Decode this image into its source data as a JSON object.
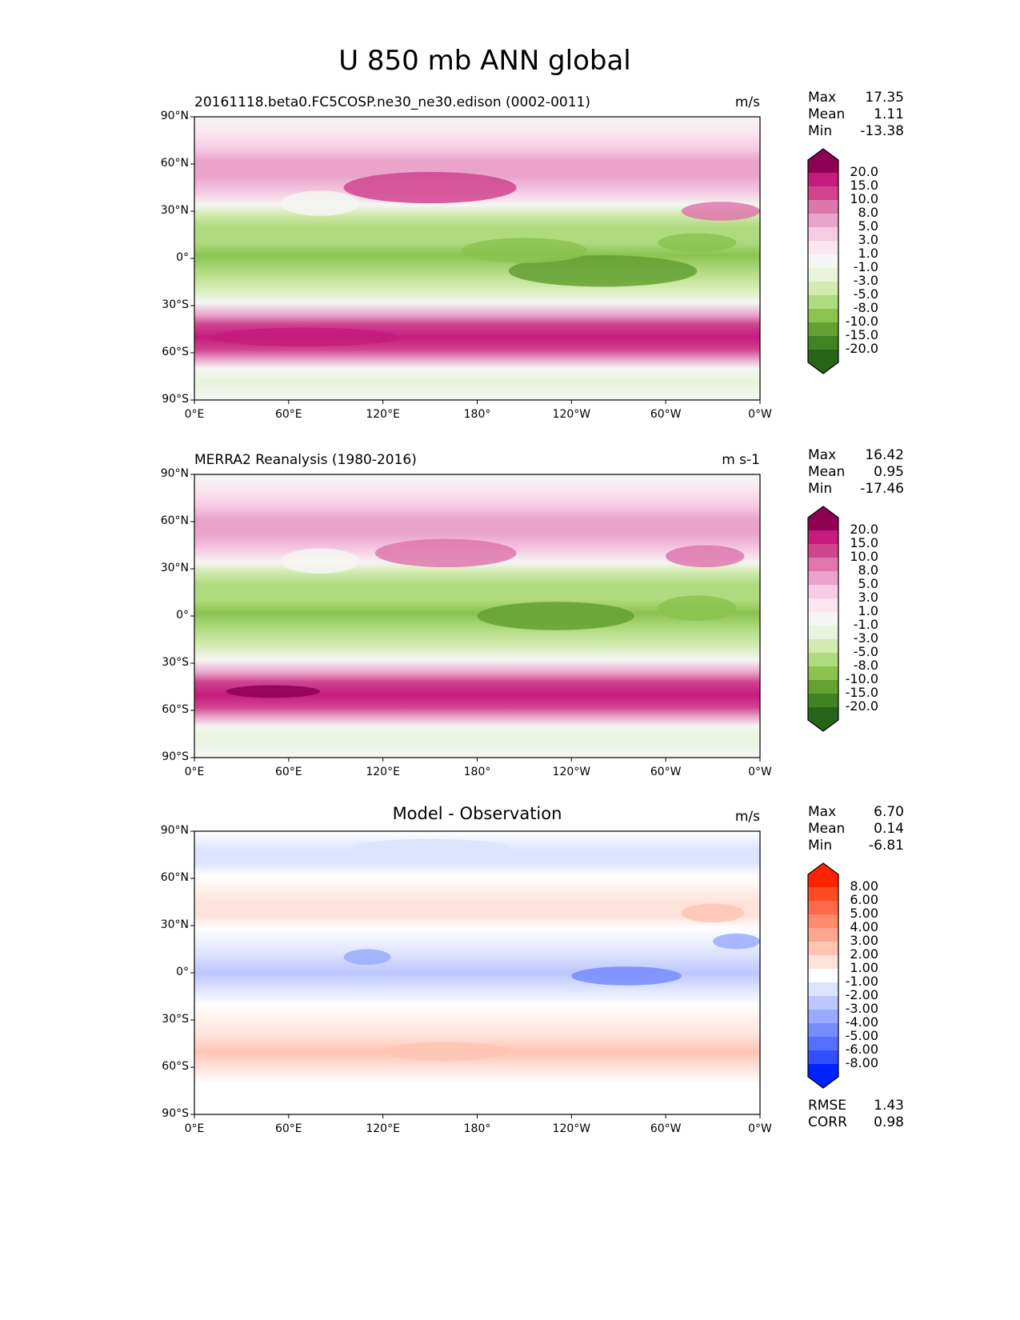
{
  "figure_title": "U 850 mb ANN global",
  "chart_data": [
    {
      "type": "heatmap",
      "title": "20161118.beta0.FC5COSP.ne30_ne30.edison (0002-0011)",
      "units": "m/s",
      "stats": {
        "max": "17.35",
        "mean": "1.11",
        "min": "-13.38"
      },
      "levels": [
        "20.0",
        "15.0",
        "10.0",
        "8.0",
        "5.0",
        "3.0",
        "1.0",
        "-1.0",
        "-3.0",
        "-5.0",
        "-8.0",
        "-10.0",
        "-15.0",
        "-20.0"
      ],
      "colors": [
        "#8e0152",
        "#c51b7d",
        "#d0448f",
        "#de77ae",
        "#eaa4cc",
        "#f6cbe3",
        "#fbe6f0",
        "#f5f6f3",
        "#e8f4dc",
        "#d2ebb0",
        "#b0da7e",
        "#8bc34f",
        "#64a032",
        "#3f8322",
        "#276419"
      ]
    },
    {
      "type": "heatmap",
      "title": "MERRA2 Reanalysis (1980-2016)",
      "units": "m s-1",
      "stats": {
        "max": "16.42",
        "mean": "0.95",
        "min": "-17.46"
      },
      "levels": [
        "20.0",
        "15.0",
        "10.0",
        "8.0",
        "5.0",
        "3.0",
        "1.0",
        "-1.0",
        "-3.0",
        "-5.0",
        "-8.0",
        "-10.0",
        "-15.0",
        "-20.0"
      ],
      "colors": [
        "#8e0152",
        "#c51b7d",
        "#d0448f",
        "#de77ae",
        "#eaa4cc",
        "#f6cbe3",
        "#fbe6f0",
        "#f5f6f3",
        "#e8f4dc",
        "#d2ebb0",
        "#b0da7e",
        "#8bc34f",
        "#64a032",
        "#3f8322",
        "#276419"
      ]
    },
    {
      "type": "heatmap",
      "title": "Model - Observation",
      "units": "m/s",
      "stats": {
        "max": "6.70",
        "mean": "0.14",
        "min": "-6.81"
      },
      "rmse": "1.43",
      "corr": "0.98",
      "levels": [
        "8.00",
        "6.00",
        "5.00",
        "4.00",
        "3.00",
        "2.00",
        "1.00",
        "-1.00",
        "-2.00",
        "-3.00",
        "-4.00",
        "-5.00",
        "-6.00",
        "-8.00"
      ],
      "colors": [
        "#ff2200",
        "#ff4a26",
        "#ff6a4a",
        "#ff8a6e",
        "#ffa690",
        "#ffc4b4",
        "#ffe2da",
        "#ffffff",
        "#dde3ff",
        "#bcc7ff",
        "#9aabff",
        "#778cff",
        "#5570ff",
        "#3050ff",
        "#0022ff"
      ]
    }
  ],
  "axes": {
    "xticks": [
      "0°E",
      "60°E",
      "120°E",
      "180°",
      "120°W",
      "60°W",
      "0°W"
    ],
    "yticks": [
      "90°N",
      "60°N",
      "30°N",
      "0°",
      "30°S",
      "60°S",
      "90°S"
    ]
  },
  "labels": {
    "max": "Max",
    "mean": "Mean",
    "min": "Min",
    "rmse": "RMSE",
    "corr": "CORR"
  }
}
